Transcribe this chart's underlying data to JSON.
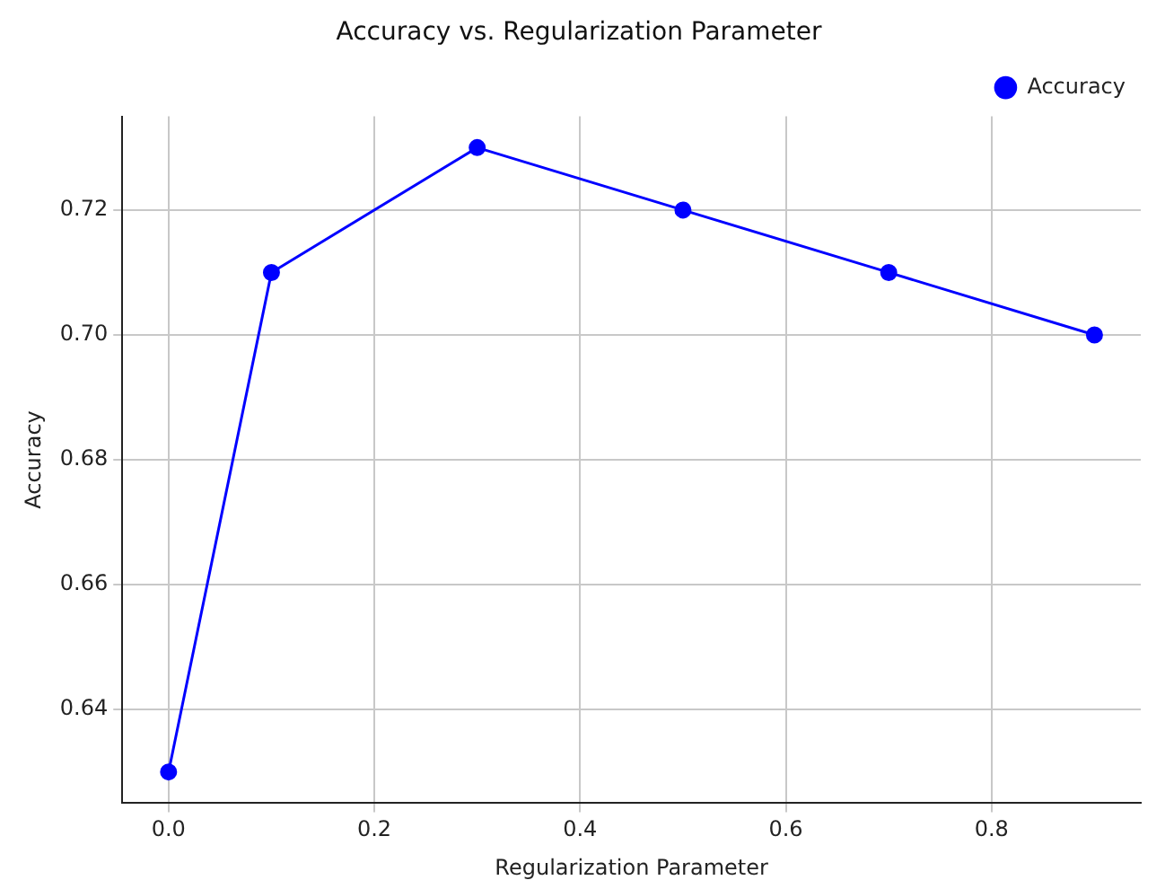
{
  "chart_data": {
    "type": "line",
    "title": "Accuracy vs. Regularization Parameter",
    "xlabel": "Regularization Parameter",
    "ylabel": "Accuracy",
    "x": [
      0,
      0.1,
      0.3,
      0.5,
      0.7,
      0.9
    ],
    "series": [
      {
        "name": "Accuracy",
        "color": "#0000ff",
        "values": [
          0.63,
          0.71,
          0.73,
          0.72,
          0.71,
          0.7
        ]
      }
    ],
    "xlim": [
      -0.045,
      0.945
    ],
    "ylim": [
      0.625,
      0.735
    ],
    "xticks": [
      {
        "value": 0,
        "label": "0.0"
      },
      0.2,
      0.4,
      0.6,
      0.8
    ],
    "yticks": [
      0.64,
      0.66,
      0.68,
      {
        "value": 0.7,
        "label": "0.70"
      },
      0.72
    ],
    "grid": true,
    "legend": "top right",
    "marker": "circle",
    "line_style": "solid"
  }
}
